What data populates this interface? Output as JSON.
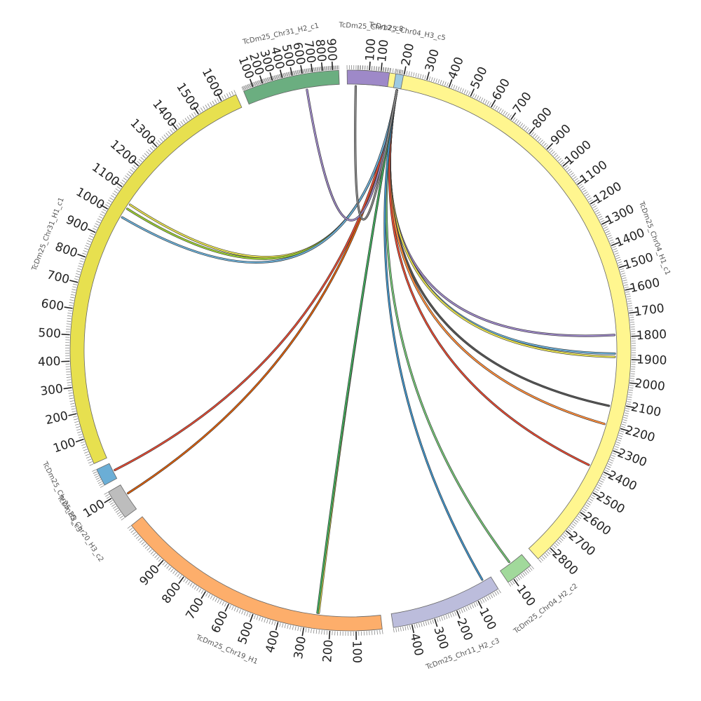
{
  "diagram": {
    "type": "circos",
    "segments": [
      {
        "id": "chr04_h1_c1",
        "label": "TcDm25_Chr04_H1_c1",
        "length": 2870,
        "color": "#fff68f",
        "major_ticks": [
          100,
          200,
          300,
          400,
          500,
          600,
          700,
          800,
          900,
          1000,
          1100,
          1200,
          1300,
          1400,
          1500,
          1600,
          1700,
          1800,
          1900,
          2000,
          2100,
          2200,
          2300,
          2400,
          2500,
          2600,
          2700,
          2800
        ]
      },
      {
        "id": "chr04_h2_c2",
        "label": "TcDm25_Chr04_H2_c2",
        "length": 130,
        "color": "#a1d99b",
        "major_ticks": [
          100
        ]
      },
      {
        "id": "chr11_h2_c3",
        "label": "TcDm25_Chr11_H2_c3",
        "length": 480,
        "color": "#bcbddc",
        "major_ticks": [
          100,
          200,
          300,
          400
        ]
      },
      {
        "id": "chr19_h1",
        "label": "TcDm25_Chr19_H1",
        "length": 1080,
        "color": "#fdae6b",
        "major_ticks": [
          100,
          200,
          300,
          400,
          500,
          600,
          700,
          800,
          900
        ]
      },
      {
        "id": "chr20_h3_c2",
        "label": "TcDm25_Chr20_H3_c2",
        "length": 130,
        "color": "#bdbdbd",
        "major_ticks": [
          100
        ]
      },
      {
        "id": "chr25_h3_c3",
        "label": "TcDm25_Chr25_H3_c3",
        "length": 80,
        "color": "#6baed6",
        "major_ticks": []
      },
      {
        "id": "chr31_h1_c1",
        "label": "TcDm25_Chr31_H1_c1",
        "length": 1660,
        "color": "#e7e04f",
        "major_ticks": [
          100,
          200,
          300,
          400,
          500,
          600,
          700,
          800,
          900,
          1000,
          1100,
          1200,
          1300,
          1400,
          1500,
          1600
        ]
      },
      {
        "id": "chr31_h2_c1",
        "label": "TcDm25_Chr31_H2_c1",
        "length": 960,
        "color": "#6bae80",
        "major_ticks": [
          100,
          200,
          300,
          400,
          500,
          600,
          700,
          800,
          900
        ]
      },
      {
        "id": "chr12_c8",
        "label": "TcDm25_Chr12_c8",
        "length": 190,
        "color": "#9e89c8",
        "major_ticks": [
          100
        ]
      },
      {
        "id": "chr04_h3_c5",
        "label": "TcDm25_Chr04_H3_c5",
        "length": 50,
        "color": "#9ecae1",
        "major_ticks": []
      }
    ],
    "links": [
      {
        "from": "chr04_h3_c5",
        "from_pos": 25,
        "to": "chr04_h1_c1",
        "to_pos": 1790,
        "color": "#9e89c8"
      },
      {
        "from": "chr04_h3_c5",
        "from_pos": 25,
        "to": "chr04_h1_c1",
        "to_pos": 1875,
        "color": "#6baed6"
      },
      {
        "from": "chr04_h3_c5",
        "from_pos": 25,
        "to": "chr04_h1_c1",
        "to_pos": 1890,
        "color": "#e7e04f"
      },
      {
        "from": "chr04_h3_c5",
        "from_pos": 25,
        "to": "chr04_h1_c1",
        "to_pos": 2115,
        "color": "#555555"
      },
      {
        "from": "chr04_h3_c5",
        "from_pos": 25,
        "to": "chr04_h1_c1",
        "to_pos": 2200,
        "color": "#fd8d3c"
      },
      {
        "from": "chr04_h3_c5",
        "from_pos": 25,
        "to": "chr04_h1_c1",
        "to_pos": 2400,
        "color": "#e34a33"
      },
      {
        "from": "chr04_h3_c5",
        "from_pos": 25,
        "to": "chr04_h2_c2",
        "to_pos": 70,
        "color": "#74c476"
      },
      {
        "from": "chr04_h3_c5",
        "from_pos": 25,
        "to": "chr11_h2_c3",
        "to_pos": 40,
        "color": "#4292c6"
      },
      {
        "from": "chr04_h3_c5",
        "from_pos": 25,
        "to": "chr19_h1",
        "to_pos": 250,
        "color": "#e7e04f"
      },
      {
        "from": "chr04_h3_c5",
        "from_pos": 25,
        "to": "chr19_h1",
        "to_pos": 255,
        "color": "#41ab5d"
      },
      {
        "from": "chr04_h3_c5",
        "from_pos": 25,
        "to": "chr20_h3_c2",
        "to_pos": 80,
        "color": "#d95f0e"
      },
      {
        "from": "chr04_h3_c5",
        "from_pos": 25,
        "to": "chr25_h3_c3",
        "to_pos": 40,
        "color": "#e34a33"
      },
      {
        "from": "chr04_h3_c5",
        "from_pos": 25,
        "to": "chr31_h1_c1",
        "to_pos": 1060,
        "color": "#e7e04f"
      },
      {
        "from": "chr04_h3_c5",
        "from_pos": 25,
        "to": "chr31_h1_c1",
        "to_pos": 1040,
        "color": "#9acd32"
      },
      {
        "from": "chr04_h3_c5",
        "from_pos": 25,
        "to": "chr31_h1_c1",
        "to_pos": 1000,
        "color": "#6baed6"
      },
      {
        "from": "chr04_h3_c5",
        "from_pos": 25,
        "to": "chr31_h2_c1",
        "to_pos": 620,
        "color": "#9e89c8"
      },
      {
        "from": "chr04_h3_c5",
        "from_pos": 25,
        "to": "chr12_c8",
        "to_pos": 40,
        "color": "#888888"
      }
    ]
  }
}
